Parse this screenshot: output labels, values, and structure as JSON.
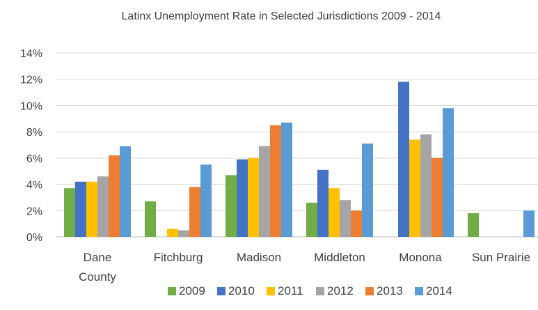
{
  "chart_data": {
    "type": "bar",
    "title": "Latinx Unemployment Rate in Selected Jurisdictions 2009 - 2014",
    "xlabel": "",
    "ylabel": "",
    "ylim": [
      0,
      14
    ],
    "yticks": [
      "0%",
      "2%",
      "4%",
      "6%",
      "8%",
      "10%",
      "12%",
      "14%"
    ],
    "grid": true,
    "legend_position": "bottom",
    "categories": [
      [
        "Dane",
        "County"
      ],
      [
        "Fitchburg"
      ],
      [
        "Madison"
      ],
      [
        "Middleton"
      ],
      [
        "Monona"
      ],
      [
        "Sun Prairie"
      ]
    ],
    "series": [
      {
        "name": "2009",
        "color": "#70AD47",
        "values": [
          3.7,
          2.7,
          4.7,
          2.6,
          null,
          1.8
        ]
      },
      {
        "name": "2010",
        "color": "#4472C4",
        "values": [
          4.2,
          null,
          5.9,
          5.1,
          11.8,
          null
        ]
      },
      {
        "name": "2011",
        "color": "#FFC000",
        "values": [
          4.2,
          0.6,
          6.0,
          3.7,
          7.4,
          null
        ]
      },
      {
        "name": "2012",
        "color": "#A5A5A5",
        "values": [
          4.6,
          0.5,
          6.9,
          2.8,
          7.8,
          null
        ]
      },
      {
        "name": "2013",
        "color": "#ED7D31",
        "values": [
          6.2,
          3.8,
          8.5,
          2.0,
          6.0,
          null
        ]
      },
      {
        "name": "2014",
        "color": "#5B9BD5",
        "values": [
          6.9,
          5.5,
          8.7,
          7.1,
          9.8,
          2.0
        ]
      }
    ]
  }
}
